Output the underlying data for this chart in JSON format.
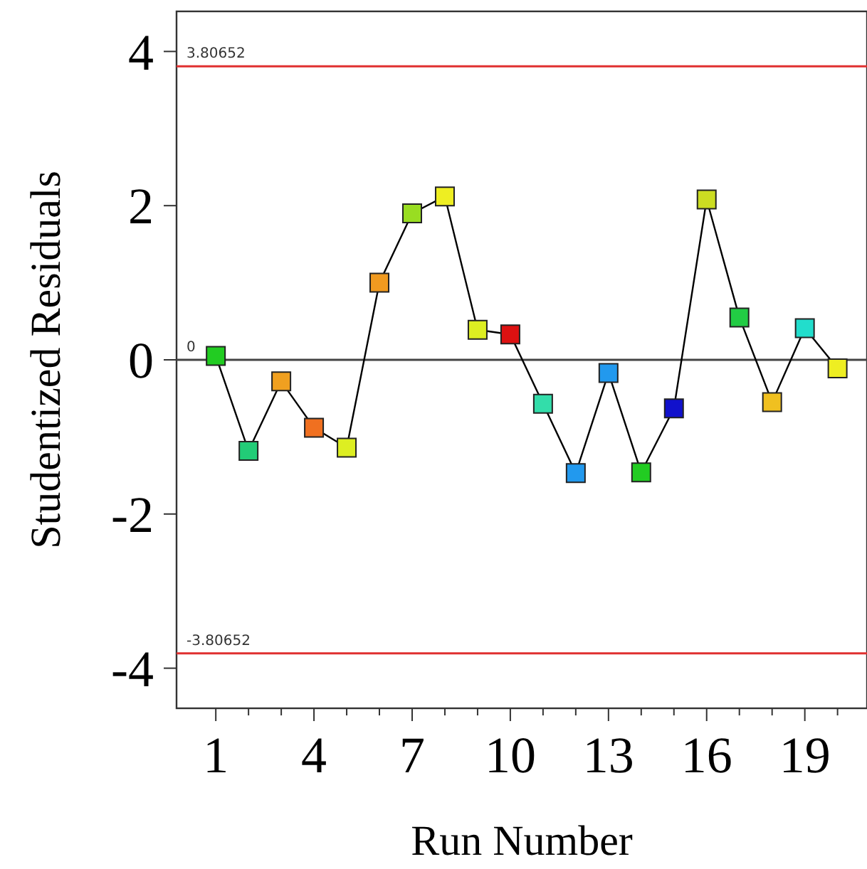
{
  "chart_data": {
    "type": "line",
    "xlabel": "Run Number",
    "ylabel": "Studentized Residuals",
    "x": [
      1,
      2,
      3,
      4,
      5,
      6,
      7,
      8,
      9,
      10,
      11,
      12,
      13,
      14,
      15,
      16,
      17,
      18,
      19,
      20
    ],
    "series": [
      {
        "color": "#000000",
        "values": [
          0.05,
          -1.18,
          -0.28,
          -0.88,
          -1.14,
          1.0,
          1.9,
          2.12,
          0.39,
          0.33,
          -0.57,
          -1.47,
          -0.17,
          -1.46,
          -0.63,
          2.08,
          0.55,
          -0.55,
          0.41,
          -0.11
        ],
        "colors": [
          "#22cc22",
          "#22cc77",
          "#f0a020",
          "#f07020",
          "#ddee22",
          "#f09a20",
          "#99dd22",
          "#eeee22",
          "#ddee22",
          "#dd1111",
          "#33ddaa",
          "#2299ee",
          "#2299ee",
          "#22cc22",
          "#1111cc",
          "#ccdd22",
          "#22cc44",
          "#f0c020",
          "#22ddcc",
          "#eeee22"
        ]
      }
    ],
    "marker": "square",
    "line_style": "solid",
    "grid": false,
    "xlim": [
      -0.2,
      20.9
    ],
    "ylim": [
      -4.52,
      4.52
    ],
    "xticks": [
      1,
      {
        "value": 2,
        "label": null
      },
      {
        "value": 3,
        "label": null
      },
      4,
      {
        "value": 5,
        "label": null
      },
      {
        "value": 6,
        "label": null
      },
      7,
      {
        "value": 8,
        "label": null
      },
      {
        "value": 9,
        "label": null
      },
      10,
      {
        "value": 11,
        "label": null
      },
      {
        "value": 12,
        "label": null
      },
      13,
      {
        "value": 14,
        "label": null
      },
      {
        "value": 15,
        "label": null
      },
      16,
      {
        "value": 17,
        "label": null
      },
      {
        "value": 18,
        "label": null
      },
      19,
      {
        "value": 20,
        "label": null
      }
    ],
    "yticks": [
      -4,
      -2,
      0,
      2,
      4
    ],
    "ref_lines": [
      {
        "axis": "y",
        "value": 3.80652,
        "label": "3.80652",
        "color": "#e03030"
      },
      {
        "axis": "y",
        "value": 0,
        "label": "0",
        "color": "#444444"
      },
      {
        "axis": "y",
        "value": -3.80652,
        "label": "-3.80652",
        "color": "#e03030"
      }
    ]
  }
}
